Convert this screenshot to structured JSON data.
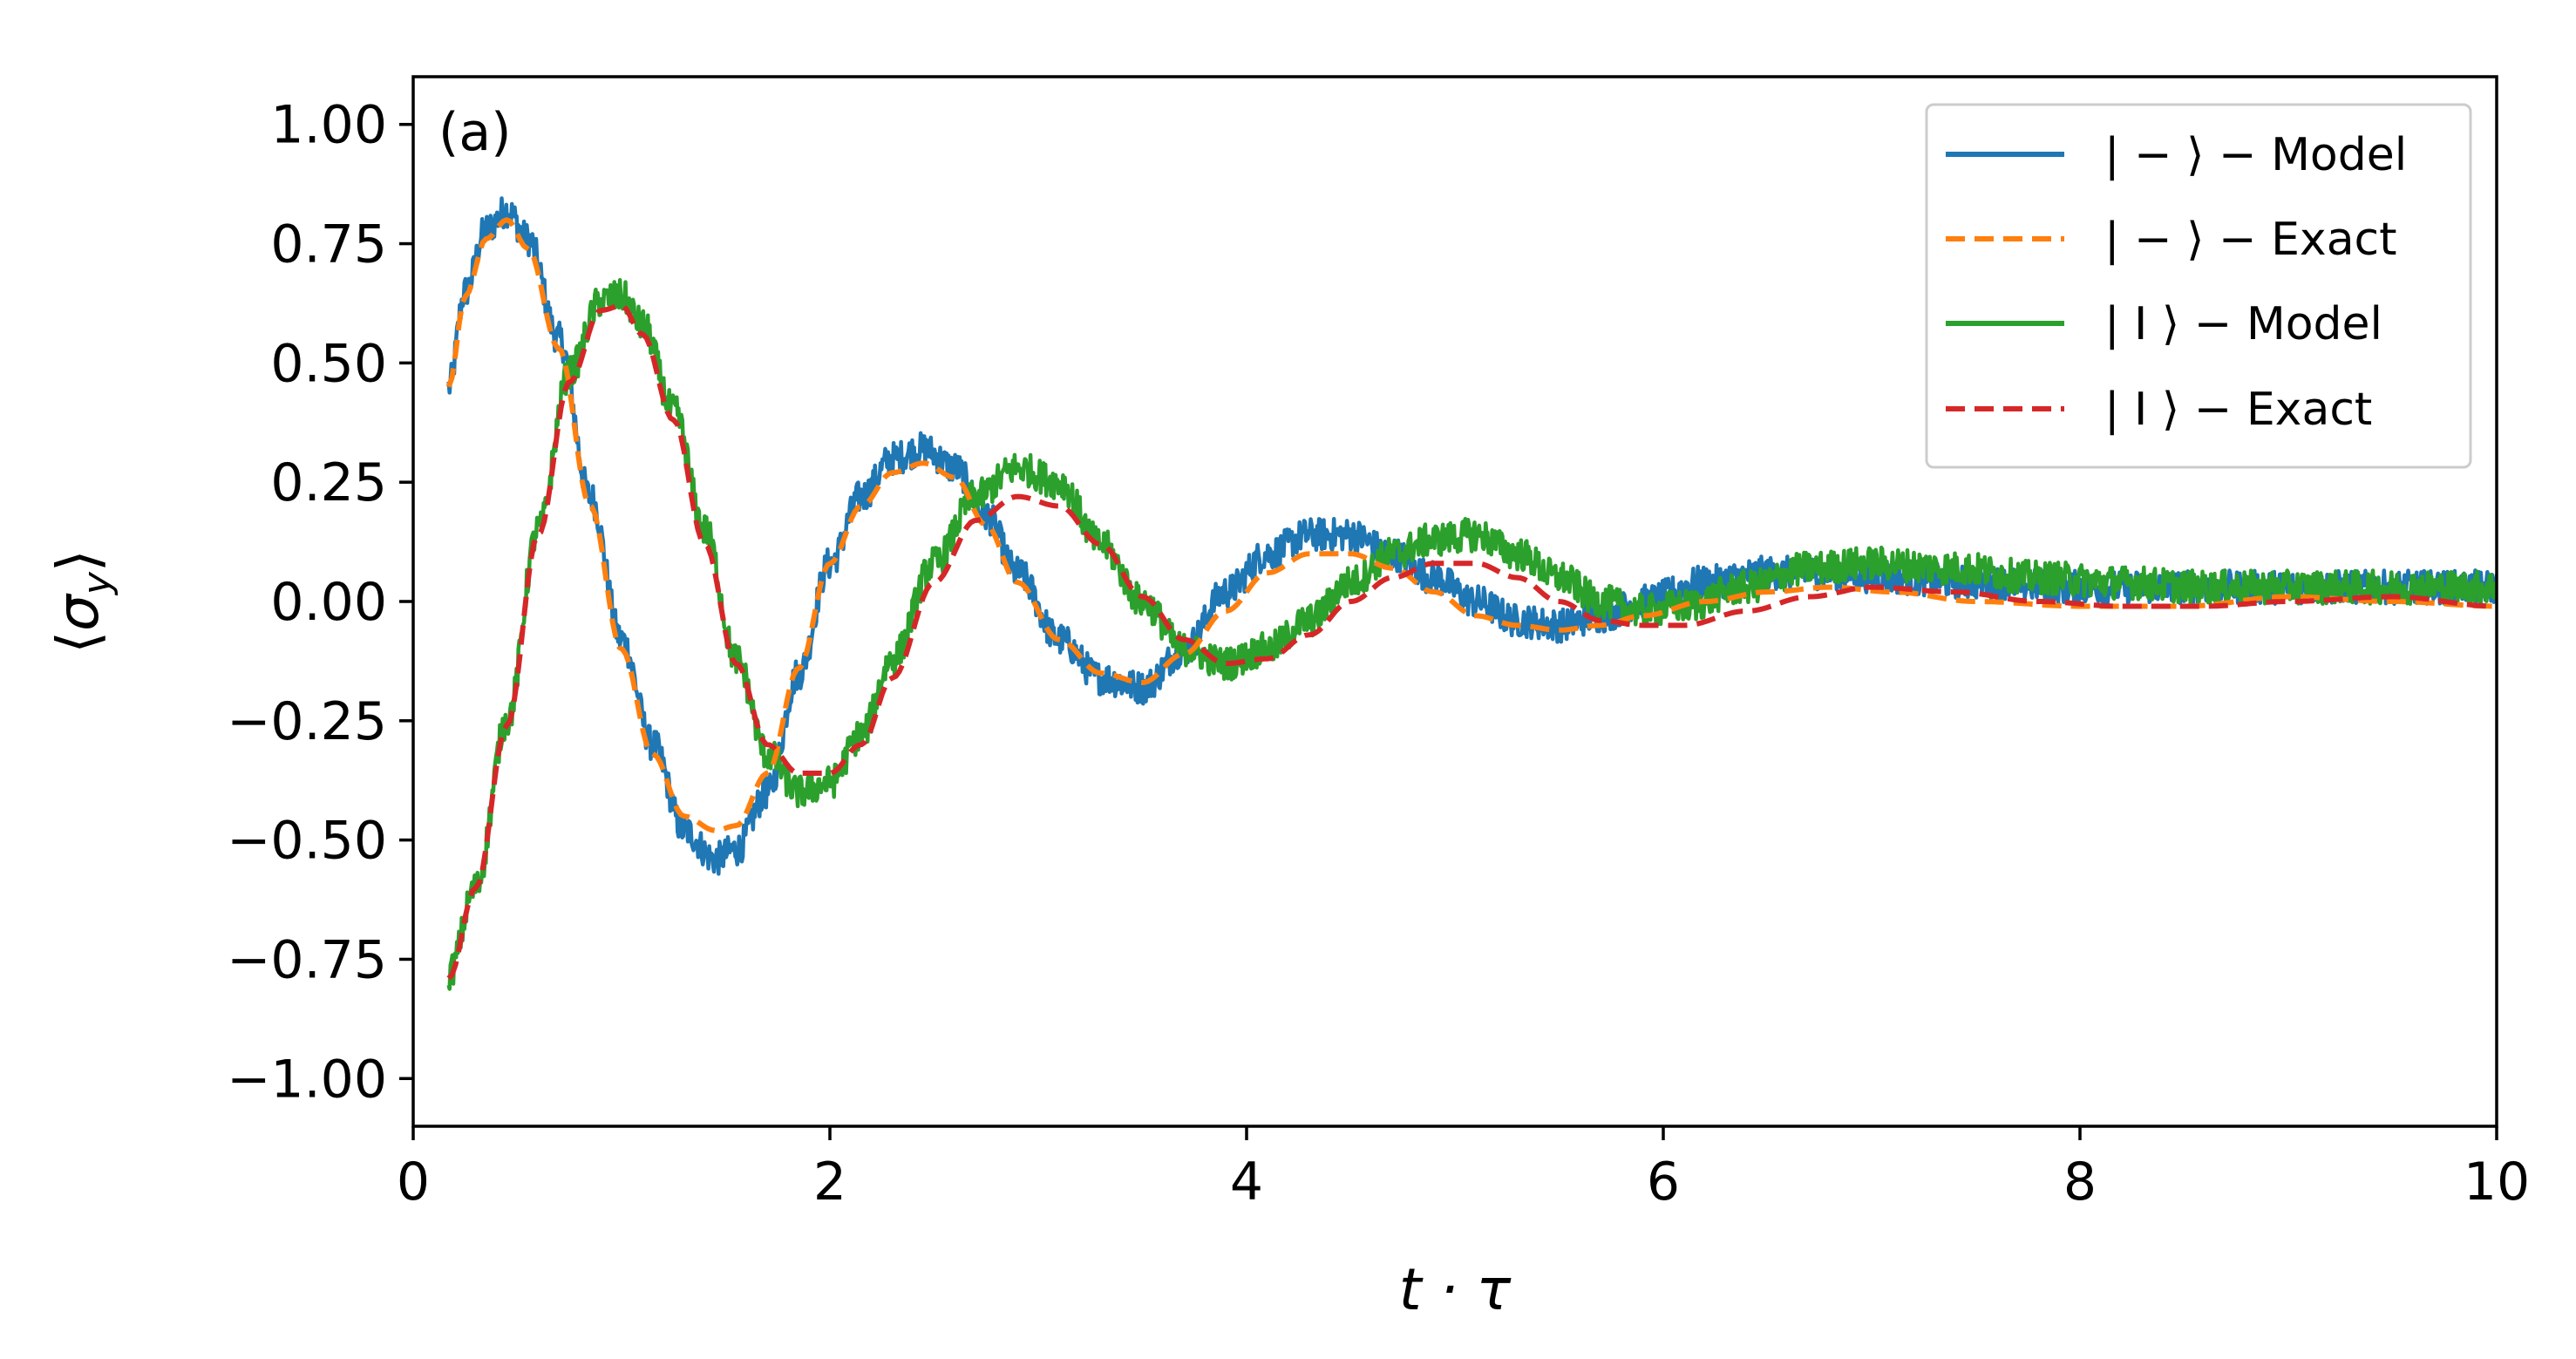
{
  "chart_data": {
    "type": "line",
    "panel_label": "(a)",
    "xlabel": "t · τ",
    "ylabel": "⟨σ_y⟩",
    "xlim": [
      0,
      10
    ],
    "ylim": [
      -1.1,
      1.1
    ],
    "x_ticks": [
      0,
      2,
      4,
      6,
      8,
      10
    ],
    "x_tick_labels": [
      "0",
      "2",
      "4",
      "6",
      "8",
      "10"
    ],
    "y_ticks": [
      1.0,
      0.75,
      0.5,
      0.25,
      0.0,
      -0.25,
      -0.5,
      -0.75,
      -1.0
    ],
    "y_tick_labels": [
      "1.00",
      "0.75",
      "0.50",
      "0.25",
      "0.00",
      "−0.25",
      "−0.50",
      "−0.75",
      "−1.00"
    ],
    "grid": false,
    "legend_position": "top-right",
    "series": [
      {
        "name": "| − ⟩ − Model",
        "color": "#1f77b4",
        "style": "solid",
        "noisy": true,
        "x": [
          0.17,
          0.25,
          0.35,
          0.45,
          0.55,
          0.7,
          0.85,
          1.0,
          1.15,
          1.3,
          1.45,
          1.55,
          1.7,
          1.85,
          2.0,
          2.15,
          2.3,
          2.45,
          2.6,
          2.75,
          2.9,
          3.1,
          3.3,
          3.5,
          3.7,
          3.9,
          4.1,
          4.3,
          4.5,
          4.7,
          4.9,
          5.1,
          5.3,
          5.5,
          5.7,
          5.9,
          6.2,
          6.5,
          6.8,
          7.1,
          7.5,
          8.0,
          8.5,
          9.0,
          9.5,
          10.0
        ],
        "y": [
          0.45,
          0.65,
          0.78,
          0.82,
          0.76,
          0.55,
          0.22,
          -0.08,
          -0.3,
          -0.48,
          -0.54,
          -0.52,
          -0.4,
          -0.15,
          0.08,
          0.22,
          0.3,
          0.32,
          0.28,
          0.18,
          0.06,
          -0.08,
          -0.16,
          -0.18,
          -0.1,
          0.02,
          0.1,
          0.14,
          0.14,
          0.1,
          0.05,
          0.0,
          -0.04,
          -0.05,
          -0.03,
          0.0,
          0.04,
          0.06,
          0.06,
          0.05,
          0.04,
          0.03,
          0.03,
          0.03,
          0.03,
          0.03
        ]
      },
      {
        "name": "| − ⟩ − Exact",
        "color": "#ff7f0e",
        "style": "dashed",
        "noisy": false,
        "x": [
          0.17,
          0.25,
          0.35,
          0.45,
          0.55,
          0.7,
          0.85,
          1.0,
          1.15,
          1.3,
          1.45,
          1.55,
          1.7,
          1.85,
          2.0,
          2.15,
          2.3,
          2.45,
          2.6,
          2.75,
          2.9,
          3.1,
          3.3,
          3.5,
          3.7,
          3.9,
          4.1,
          4.3,
          4.5,
          4.7,
          4.9,
          5.1,
          5.3,
          5.5,
          5.7,
          5.9,
          6.2,
          6.5,
          6.8,
          7.1,
          7.5,
          8.0,
          8.5,
          9.0,
          9.5,
          10.0
        ],
        "y": [
          0.45,
          0.64,
          0.76,
          0.8,
          0.74,
          0.53,
          0.2,
          -0.1,
          -0.32,
          -0.45,
          -0.48,
          -0.47,
          -0.36,
          -0.14,
          0.08,
          0.2,
          0.27,
          0.29,
          0.26,
          0.16,
          0.04,
          -0.08,
          -0.15,
          -0.17,
          -0.11,
          -0.02,
          0.06,
          0.1,
          0.1,
          0.07,
          0.02,
          -0.03,
          -0.05,
          -0.06,
          -0.05,
          -0.03,
          0.0,
          0.02,
          0.03,
          0.02,
          0.0,
          -0.01,
          -0.01,
          0.01,
          0.0,
          -0.01
        ]
      },
      {
        "name": "|  I ⟩ − Model",
        "color": "#2ca02c",
        "style": "solid",
        "noisy": true,
        "x": [
          0.17,
          0.3,
          0.45,
          0.6,
          0.75,
          0.9,
          1.0,
          1.1,
          1.25,
          1.4,
          1.55,
          1.7,
          1.85,
          2.0,
          2.15,
          2.3,
          2.5,
          2.7,
          2.9,
          3.1,
          3.3,
          3.5,
          3.7,
          3.9,
          4.1,
          4.3,
          4.5,
          4.7,
          4.9,
          5.1,
          5.3,
          5.5,
          5.7,
          5.9,
          6.1,
          6.4,
          6.7,
          7.0,
          7.4,
          7.8,
          8.2,
          8.6,
          9.0,
          9.5,
          10.0
        ],
        "y": [
          -0.78,
          -0.6,
          -0.25,
          0.15,
          0.48,
          0.63,
          0.64,
          0.58,
          0.4,
          0.15,
          -0.12,
          -0.32,
          -0.4,
          -0.38,
          -0.28,
          -0.12,
          0.08,
          0.22,
          0.28,
          0.25,
          0.12,
          0.0,
          -0.1,
          -0.13,
          -0.1,
          -0.04,
          0.04,
          0.1,
          0.13,
          0.14,
          0.1,
          0.05,
          0.0,
          -0.02,
          -0.01,
          0.03,
          0.07,
          0.08,
          0.07,
          0.05,
          0.04,
          0.03,
          0.03,
          0.03,
          0.03
        ]
      },
      {
        "name": "|  I ⟩ − Exact",
        "color": "#d62728",
        "style": "dashed",
        "noisy": false,
        "x": [
          0.17,
          0.3,
          0.45,
          0.6,
          0.75,
          0.9,
          1.0,
          1.1,
          1.25,
          1.4,
          1.55,
          1.7,
          1.85,
          2.0,
          2.15,
          2.3,
          2.5,
          2.7,
          2.9,
          3.1,
          3.3,
          3.5,
          3.7,
          3.9,
          4.1,
          4.3,
          4.5,
          4.7,
          4.9,
          5.1,
          5.3,
          5.5,
          5.7,
          5.9,
          6.1,
          6.4,
          6.7,
          7.0,
          7.4,
          7.8,
          8.2,
          8.6,
          9.0,
          9.5,
          10.0
        ],
        "y": [
          -0.79,
          -0.6,
          -0.26,
          0.14,
          0.46,
          0.61,
          0.62,
          0.56,
          0.38,
          0.12,
          -0.13,
          -0.3,
          -0.36,
          -0.36,
          -0.3,
          -0.16,
          0.04,
          0.17,
          0.22,
          0.2,
          0.12,
          0.01,
          -0.08,
          -0.13,
          -0.12,
          -0.07,
          0.0,
          0.05,
          0.08,
          0.08,
          0.05,
          0.0,
          -0.04,
          -0.05,
          -0.05,
          -0.02,
          0.01,
          0.03,
          0.02,
          0.0,
          -0.01,
          -0.01,
          0.0,
          0.01,
          -0.01
        ]
      }
    ]
  }
}
